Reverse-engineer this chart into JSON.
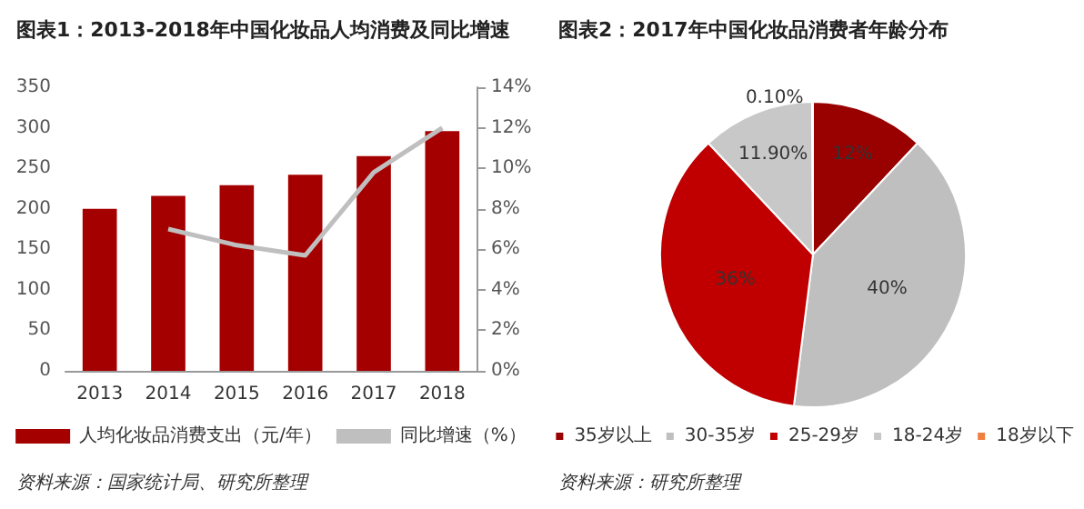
{
  "chart_data": [
    {
      "type": "bar",
      "title": "图表1：2013-2018年中国化妆品人均消费及同比增速",
      "categories": [
        "2013",
        "2014",
        "2015",
        "2016",
        "2017",
        "2018"
      ],
      "series": [
        {
          "name": "人均化妆品消费支出（元/年）",
          "type": "bar",
          "color": "#a50000",
          "values": [
            200,
            216,
            229,
            242,
            265,
            296
          ]
        },
        {
          "name": "同比增速（%）",
          "type": "line",
          "axis": "y2",
          "color": "#bfbfbf",
          "values": [
            null,
            7.0,
            6.2,
            5.7,
            9.8,
            12.0
          ]
        }
      ],
      "ylim": [
        0,
        350
      ],
      "yticks": [
        0,
        50,
        100,
        150,
        200,
        250,
        300,
        350
      ],
      "y2lim": [
        0,
        14
      ],
      "y2ticks": [
        {
          "value": 0,
          "label": "0%"
        },
        {
          "value": 2,
          "label": "2%"
        },
        {
          "value": 4,
          "label": "4%"
        },
        {
          "value": 6,
          "label": "6%"
        },
        {
          "value": 8,
          "label": "8%"
        },
        {
          "value": 10,
          "label": "10%"
        },
        {
          "value": 12,
          "label": "12%"
        },
        {
          "value": 14,
          "label": "14%"
        }
      ],
      "grid": false,
      "marker": "none",
      "legend": "bottom",
      "annotations": [
        "资料来源：国家统计局、研究所整理"
      ]
    },
    {
      "type": "pie",
      "title": "图表2：2017年中国化妆品消费者年龄分布",
      "categories": [
        "35岁以上",
        "30-35岁",
        "25-29岁",
        "18-24岁",
        "18岁以下"
      ],
      "values": [
        12,
        40,
        36,
        11.9,
        0.1
      ],
      "colors": [
        "#990000",
        "#bfbfbf",
        "#c00000",
        "#c8c8c8",
        "#f08040"
      ],
      "value_labels": [
        "12%",
        "40%",
        "36%",
        "11.90%",
        "0.10%"
      ],
      "legend": "bottom",
      "annotations": [
        "资料来源：研究所整理"
      ]
    }
  ]
}
